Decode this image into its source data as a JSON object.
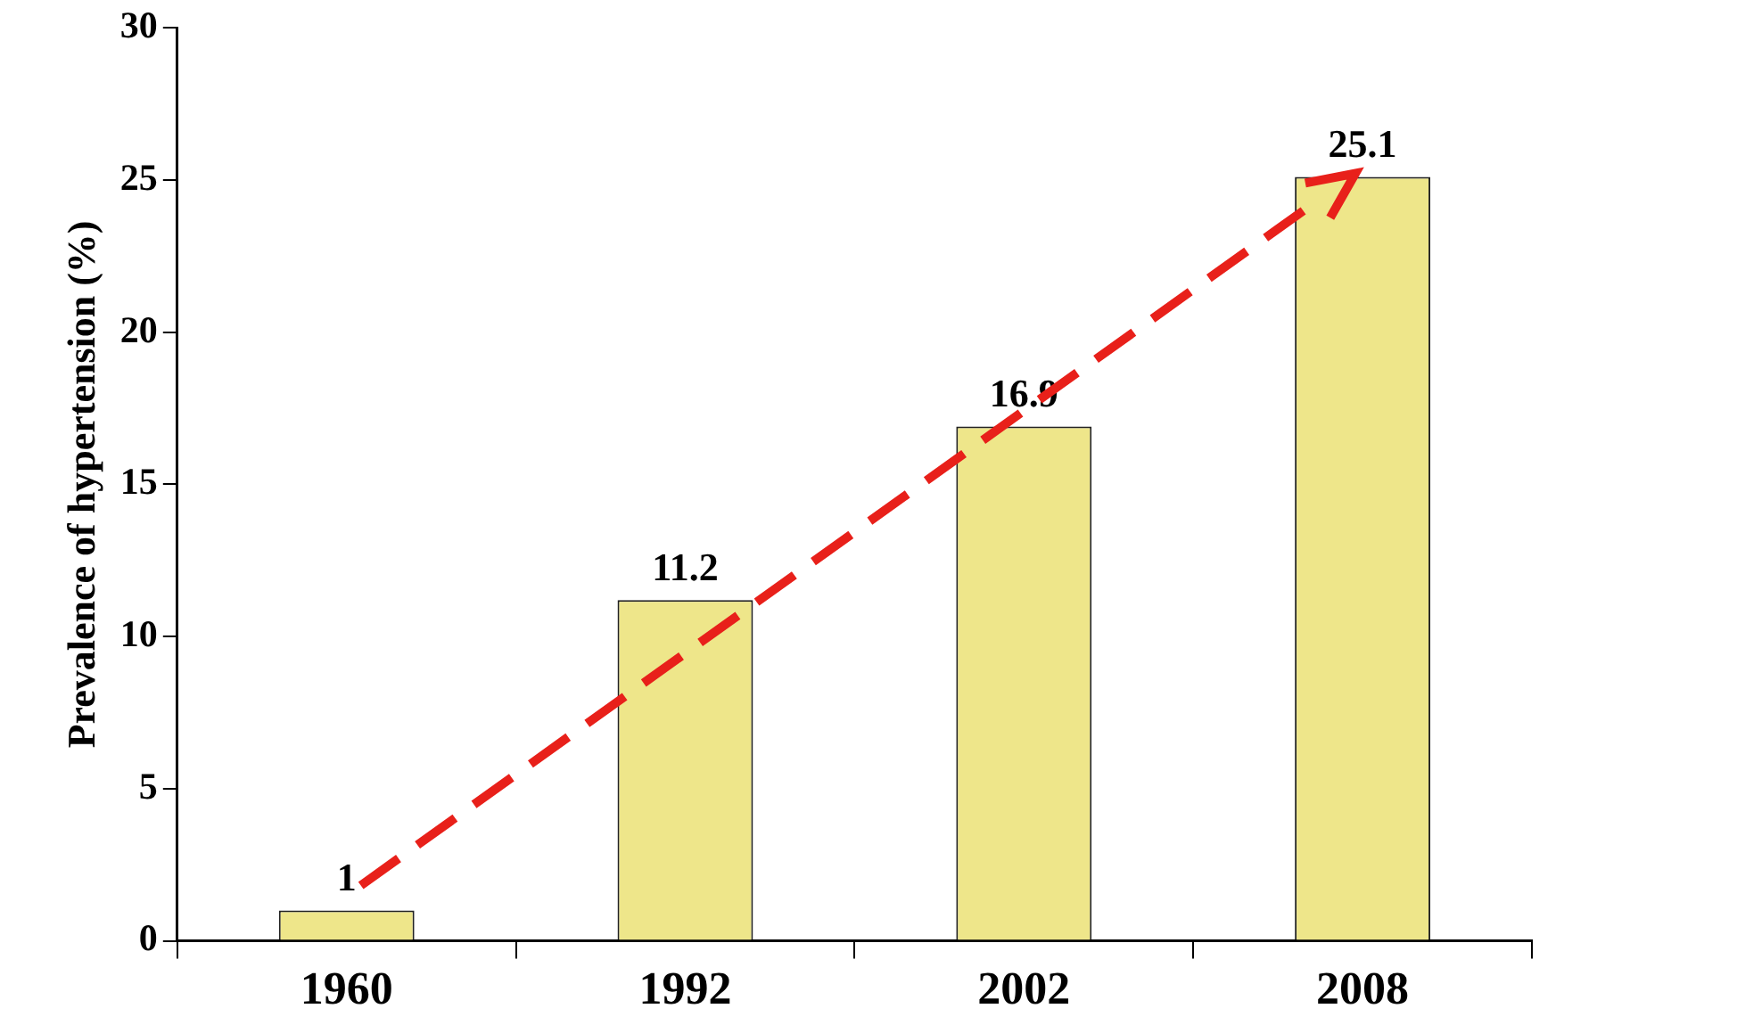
{
  "chart_data": {
    "type": "bar",
    "ylabel": "Prevalence of hypertension (%)",
    "categories": [
      "1960",
      "1992",
      "2002",
      "2008"
    ],
    "values": [
      1,
      11.2,
      16.9,
      25.1
    ],
    "color": "#eee68a",
    "ylim": [
      0,
      30
    ],
    "yticks": [
      0,
      5,
      10,
      15,
      20,
      25,
      30
    ],
    "grid": false,
    "legend": false,
    "data_labels": true
  }
}
